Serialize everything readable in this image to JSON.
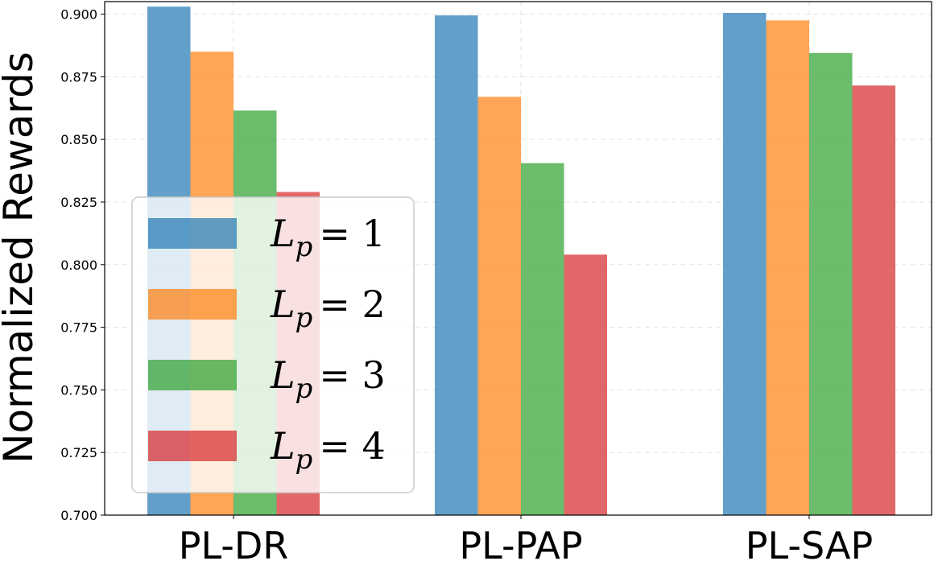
{
  "chart_data": {
    "type": "bar",
    "title": "",
    "xlabel": "",
    "ylabel": "Normalized Rewards",
    "categories": [
      "PL-DR",
      "PL-PAP",
      "PL-SAP"
    ],
    "series": [
      {
        "name": "L_p = 1",
        "color": "#1f77b4",
        "values": [
          0.903,
          0.8995,
          0.9005
        ]
      },
      {
        "name": "L_p = 2",
        "color": "#ff7f0e",
        "values": [
          0.885,
          0.867,
          0.8975
        ]
      },
      {
        "name": "L_p = 3",
        "color": "#2ca02c",
        "values": [
          0.8615,
          0.8405,
          0.8845
        ]
      },
      {
        "name": "L_p = 4",
        "color": "#d62728",
        "values": [
          0.829,
          0.804,
          0.8715
        ]
      }
    ],
    "ylim": [
      0.7,
      0.905
    ],
    "yticks": [
      0.7,
      0.725,
      0.75,
      0.775,
      0.8,
      0.825,
      0.85,
      0.875,
      0.9
    ],
    "ytick_labels": [
      "0.700",
      "0.725",
      "0.750",
      "0.775",
      "0.800",
      "0.825",
      "0.850",
      "0.875",
      "0.900"
    ],
    "grid": true,
    "legend_position": "lower-left",
    "legend_entries": [
      {
        "var": "L",
        "sub": "p",
        "rhs": "= 1"
      },
      {
        "var": "L",
        "sub": "p",
        "rhs": "= 2"
      },
      {
        "var": "L",
        "sub": "p",
        "rhs": "= 3"
      },
      {
        "var": "L",
        "sub": "p",
        "rhs": "= 4"
      }
    ]
  }
}
